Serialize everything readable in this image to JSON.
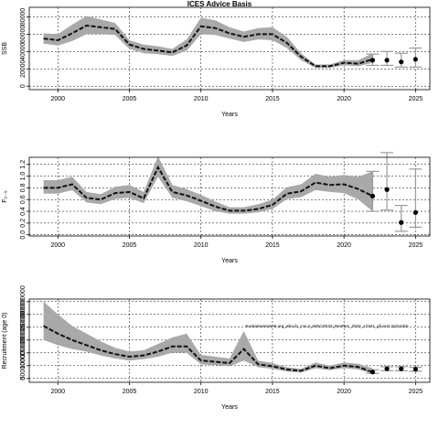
{
  "chart_data": [
    {
      "type": "line",
      "title": "ICES Advice Basis",
      "xlabel": "Years",
      "ylabel": "SSB",
      "xlim": [
        1998.0,
        2026.0
      ],
      "ylim": [
        -4000,
        91000
      ],
      "xticks": [
        2000,
        2005,
        2010,
        2015,
        2020,
        2025
      ],
      "yticks": [
        0,
        20000,
        40000,
        60000,
        80000
      ],
      "grid": true,
      "series": [
        {
          "kind": "estimate-with-band",
          "x": [
            1999,
            2000,
            2001,
            2002,
            2003,
            2004,
            2005,
            2006,
            2007,
            2008,
            2009,
            2010,
            2011,
            2012,
            2013,
            2014,
            2015,
            2016,
            2017,
            2018,
            2019,
            2020,
            2021,
            2022
          ],
          "values": [
            55000,
            53000,
            61000,
            70000,
            68000,
            66000,
            48000,
            43000,
            41000,
            39000,
            47000,
            69000,
            67000,
            61000,
            57000,
            60000,
            60000,
            50000,
            34000,
            23000,
            23000,
            27000,
            26000,
            31000
          ],
          "lower": [
            49000,
            47000,
            52000,
            60000,
            60000,
            59000,
            43000,
            38000,
            37000,
            35000,
            41000,
            60000,
            59000,
            55000,
            51000,
            54000,
            53000,
            44000,
            30000,
            21000,
            21000,
            24000,
            23000,
            27000
          ],
          "upper": [
            61000,
            60000,
            71000,
            81000,
            77000,
            73000,
            53000,
            48000,
            46000,
            43000,
            54000,
            79000,
            76000,
            68000,
            63000,
            67000,
            68000,
            57000,
            38000,
            25000,
            25000,
            30000,
            30000,
            38000
          ]
        },
        {
          "kind": "forecast-with-whiskers",
          "x": [
            2022,
            2023,
            2024,
            2025
          ],
          "values": [
            30000,
            30000,
            28000,
            31000
          ],
          "lower": [
            24000,
            24000,
            22000,
            22000
          ],
          "upper": [
            37000,
            40000,
            38000,
            44000
          ]
        }
      ]
    },
    {
      "type": "line",
      "title": "",
      "xlabel": "Years",
      "ylabel": "F₂₋₅",
      "xlim": [
        1998.0,
        2026.0
      ],
      "ylim": [
        -0.02,
        1.32
      ],
      "xticks": [
        2000,
        2005,
        2010,
        2015,
        2020,
        2025
      ],
      "yticks": [
        0.0,
        0.2,
        0.4,
        0.6,
        0.8,
        1.0,
        1.2
      ],
      "ytick_labels": [
        "0.0",
        "0.2",
        "0.4",
        "0.6",
        "0.8",
        "1.0",
        "1.2"
      ],
      "grid": true,
      "series": [
        {
          "kind": "estimate-with-band",
          "x": [
            1999,
            2000,
            2001,
            2002,
            2003,
            2004,
            2005,
            2006,
            2007,
            2008,
            2009,
            2010,
            2011,
            2012,
            2013,
            2014,
            2015,
            2016,
            2017,
            2018,
            2019,
            2020,
            2021,
            2022
          ],
          "values": [
            0.8,
            0.8,
            0.86,
            0.63,
            0.6,
            0.71,
            0.73,
            0.62,
            1.15,
            0.73,
            0.67,
            0.58,
            0.48,
            0.41,
            0.41,
            0.44,
            0.51,
            0.7,
            0.74,
            0.89,
            0.85,
            0.86,
            0.78,
            0.66
          ],
          "lower": [
            0.7,
            0.7,
            0.76,
            0.55,
            0.52,
            0.61,
            0.63,
            0.54,
            0.99,
            0.63,
            0.57,
            0.49,
            0.4,
            0.36,
            0.36,
            0.38,
            0.44,
            0.61,
            0.64,
            0.76,
            0.73,
            0.71,
            0.6,
            0.4
          ],
          "upper": [
            0.93,
            0.93,
            0.99,
            0.73,
            0.69,
            0.82,
            0.85,
            0.73,
            1.34,
            0.85,
            0.78,
            0.68,
            0.57,
            0.47,
            0.47,
            0.52,
            0.6,
            0.81,
            0.86,
            1.04,
            0.99,
            1.02,
            0.99,
            1.08
          ]
        },
        {
          "kind": "forecast-with-whiskers",
          "x": [
            2022,
            2023,
            2024,
            2025
          ],
          "values": [
            0.66,
            0.77,
            0.21,
            0.38
          ],
          "lower": [
            0.4,
            0.42,
            0.06,
            0.13
          ],
          "upper": [
            1.08,
            1.4,
            0.5,
            1.12
          ]
        }
      ]
    },
    {
      "type": "line",
      "title": "",
      "xlabel": "Years",
      "ylabel": "Recruitment (age 0)",
      "xlim": [
        1998.0,
        2026.0
      ],
      "ylim": [
        -15000000,
        310000000
      ],
      "xticks": [
        2000,
        2005,
        2010,
        2015,
        2020,
        2025
      ],
      "yticks": [
        0,
        50000000,
        100000000,
        150000000,
        200000000,
        250000000,
        300000000
      ],
      "ytick_labels": [
        "0",
        "50000000",
        "100000000",
        "150000000",
        "200000000",
        "250000000",
        "300000000"
      ],
      "grid": true,
      "annotation": "stockassessment.org_who.ib_cos.4_WGCSE23_ResRec_2023_17401_gll.xs2r.2p3c4ddc",
      "series": [
        {
          "kind": "estimate-with-band",
          "x": [
            1999,
            2000,
            2001,
            2002,
            2003,
            2004,
            2005,
            2006,
            2007,
            2008,
            2009,
            2010,
            2011,
            2012,
            2013,
            2014,
            2015,
            2016,
            2017,
            2018,
            2019,
            2020,
            2021,
            2022
          ],
          "values": [
            205000000,
            175000000,
            150000000,
            130000000,
            110000000,
            95000000,
            85000000,
            90000000,
            105000000,
            125000000,
            125000000,
            70000000,
            65000000,
            60000000,
            115000000,
            55000000,
            48000000,
            35000000,
            30000000,
            50000000,
            40000000,
            50000000,
            45000000,
            25000000
          ],
          "lower": [
            150000000,
            130000000,
            115000000,
            105000000,
            90000000,
            78000000,
            70000000,
            75000000,
            85000000,
            100000000,
            100000000,
            55000000,
            52000000,
            48000000,
            70000000,
            44000000,
            38000000,
            27000000,
            23000000,
            40000000,
            32000000,
            40000000,
            35000000,
            18000000
          ],
          "upper": [
            300000000,
            250000000,
            205000000,
            175000000,
            145000000,
            120000000,
            105000000,
            110000000,
            135000000,
            160000000,
            175000000,
            92000000,
            85000000,
            78000000,
            185000000,
            70000000,
            60000000,
            44000000,
            38000000,
            62000000,
            50000000,
            62000000,
            57000000,
            40000000
          ]
        },
        {
          "kind": "forecast-with-whiskers",
          "x": [
            2022,
            2023,
            2024,
            2025
          ],
          "values": [
            25000000,
            38000000,
            38000000,
            36000000
          ],
          "lower": [
            20000000,
            30000000,
            30000000,
            28000000
          ],
          "upper": [
            34000000,
            46000000,
            46000000,
            44000000
          ]
        }
      ]
    }
  ]
}
